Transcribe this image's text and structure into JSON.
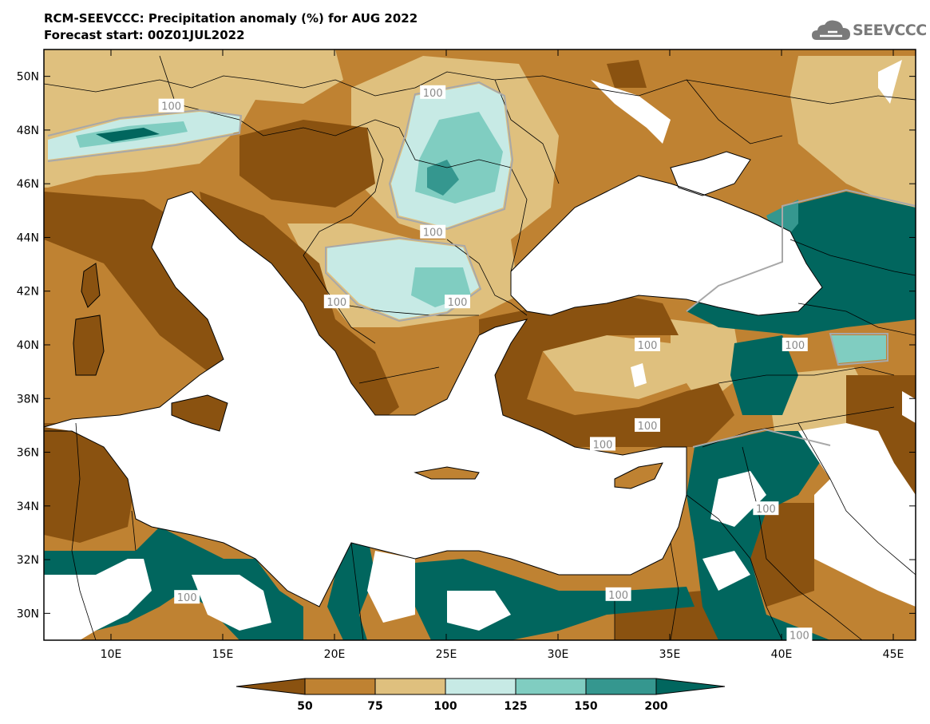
{
  "title_line1": "RCM-SEEVCCC: Precipitation anomaly (%) for AUG 2022",
  "title_line2": "Forecast start: 00Z01JUL2022",
  "logo_text": "SEEVCCC",
  "map": {
    "lon_range": [
      7,
      46
    ],
    "lat_range": [
      29,
      51
    ],
    "lat_ticks": [
      {
        "value": 50,
        "label": "50N"
      },
      {
        "value": 48,
        "label": "48N"
      },
      {
        "value": 46,
        "label": "46N"
      },
      {
        "value": 44,
        "label": "44N"
      },
      {
        "value": 42,
        "label": "42N"
      },
      {
        "value": 40,
        "label": "40N"
      },
      {
        "value": 38,
        "label": "38N"
      },
      {
        "value": 36,
        "label": "36N"
      },
      {
        "value": 34,
        "label": "34N"
      },
      {
        "value": 32,
        "label": "32N"
      },
      {
        "value": 30,
        "label": "30N"
      }
    ],
    "lon_ticks": [
      {
        "value": 10,
        "label": "10E"
      },
      {
        "value": 15,
        "label": "15E"
      },
      {
        "value": 20,
        "label": "20E"
      },
      {
        "value": 25,
        "label": "25E"
      },
      {
        "value": 30,
        "label": "30E"
      },
      {
        "value": 35,
        "label": "35E"
      },
      {
        "value": 40,
        "label": "40E"
      },
      {
        "value": 45,
        "label": "45E"
      }
    ],
    "contour_labels": [
      {
        "text": "100",
        "lon": 12.7,
        "lat": 48.9
      },
      {
        "text": "100",
        "lon": 24.4,
        "lat": 49.4
      },
      {
        "text": "100",
        "lon": 24.4,
        "lat": 44.2
      },
      {
        "text": "100",
        "lon": 20.1,
        "lat": 41.6
      },
      {
        "text": "100",
        "lon": 25.5,
        "lat": 41.6
      },
      {
        "text": "100",
        "lon": 34.0,
        "lat": 40.0
      },
      {
        "text": "100",
        "lon": 40.6,
        "lat": 40.0
      },
      {
        "text": "100",
        "lon": 34.0,
        "lat": 37.0
      },
      {
        "text": "100",
        "lon": 32.0,
        "lat": 36.3
      },
      {
        "text": "100",
        "lon": 39.3,
        "lat": 33.9
      },
      {
        "text": "100",
        "lon": 13.4,
        "lat": 30.6
      },
      {
        "text": "100",
        "lon": 32.7,
        "lat": 30.7
      },
      {
        "text": "100",
        "lon": 40.8,
        "lat": 29.2
      }
    ],
    "colors": {
      "lt50": "#8a5210",
      "50_75": "#bf8232",
      "75_100": "#dfc07e",
      "100_125": "#c7eae5",
      "125_150": "#80cdc1",
      "150_200": "#35978f",
      "gt200": "#01665e",
      "frame": "#000000"
    }
  },
  "colorbar": {
    "levels": [
      "50",
      "75",
      "100",
      "125",
      "150",
      "200"
    ],
    "colors": [
      "#8a5210",
      "#bf8232",
      "#dfc07e",
      "#c7eae5",
      "#80cdc1",
      "#35978f",
      "#01665e"
    ]
  }
}
